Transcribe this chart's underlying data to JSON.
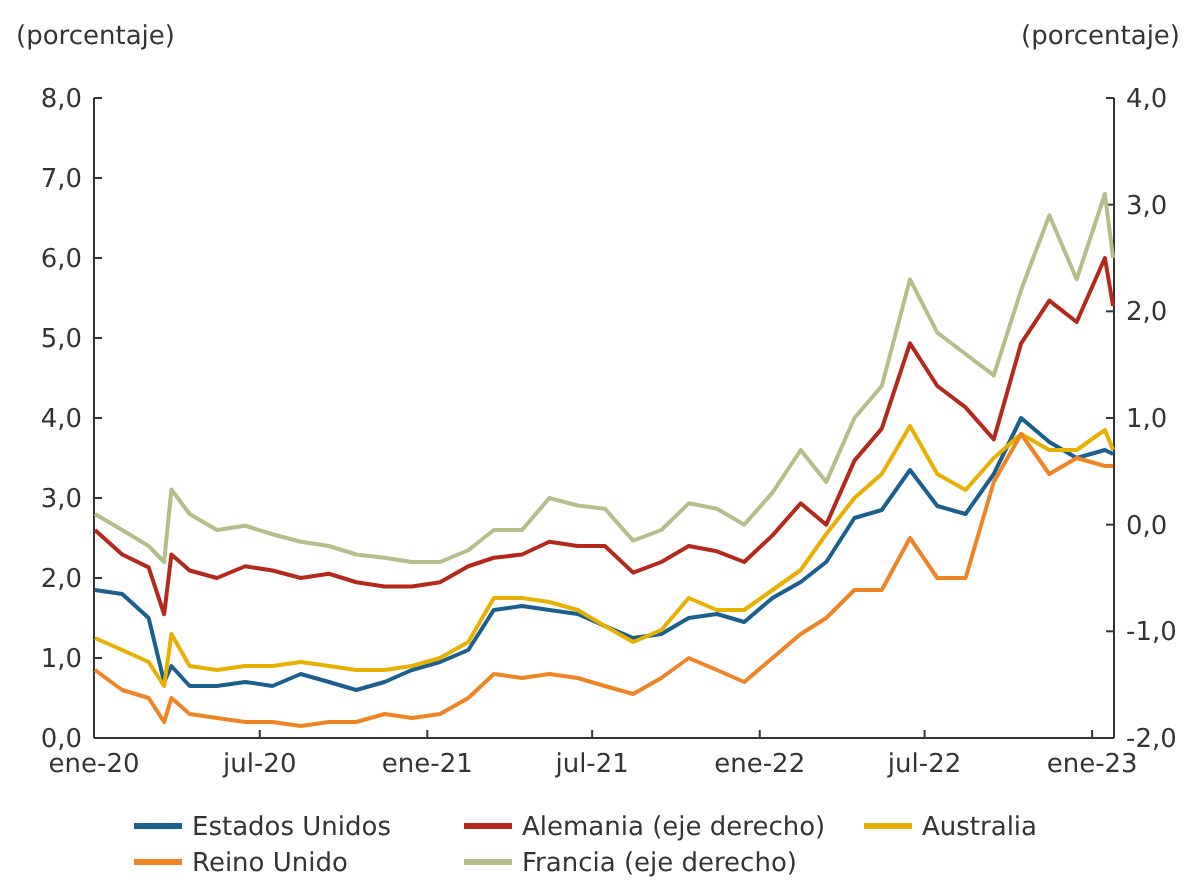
{
  "chart_data": {
    "type": "line",
    "ylabel": "(porcentaje)",
    "y2label": "(porcentaje)",
    "legend": "bottom",
    "x": [
      "2020-01-02",
      "2020-02-01",
      "2020-03-01",
      "2020-03-18",
      "2020-03-26",
      "2020-04-15",
      "2020-05-15",
      "2020-06-15",
      "2020-07-15",
      "2020-08-15",
      "2020-09-15",
      "2020-10-15",
      "2020-11-15",
      "2020-12-15",
      "2021-01-15",
      "2021-02-15",
      "2021-03-15",
      "2021-04-15",
      "2021-05-15",
      "2021-06-15",
      "2021-07-15",
      "2021-08-15",
      "2021-09-15",
      "2021-10-15",
      "2021-11-15",
      "2021-12-15",
      "2022-01-15",
      "2022-02-15",
      "2022-03-15",
      "2022-04-15",
      "2022-05-15",
      "2022-06-15",
      "2022-07-15",
      "2022-08-15",
      "2022-09-15",
      "2022-10-15",
      "2022-11-15",
      "2022-12-15",
      "2023-01-15",
      "2023-01-24"
    ],
    "xlim": [
      "2020-01-01",
      "2023-01-25"
    ],
    "xticks": [
      {
        "value": "2020-01-01",
        "label": "ene-20"
      },
      {
        "value": "2020-07-01",
        "label": "jul-20"
      },
      {
        "value": "2021-01-01",
        "label": "ene-21"
      },
      {
        "value": "2021-07-01",
        "label": "jul-21"
      },
      {
        "value": "2022-01-01",
        "label": "ene-22"
      },
      {
        "value": "2022-07-01",
        "label": "jul-22"
      },
      {
        "value": "2023-01-01",
        "label": "ene-23"
      }
    ],
    "ylim": [
      0,
      8
    ],
    "yticks": [
      {
        "value": 0,
        "label": "0,0"
      },
      {
        "value": 1,
        "label": "1,0"
      },
      {
        "value": 2,
        "label": "2,0"
      },
      {
        "value": 3,
        "label": "3,0"
      },
      {
        "value": 4,
        "label": "4,0"
      },
      {
        "value": 5,
        "label": "5,0"
      },
      {
        "value": 6,
        "label": "6,0"
      },
      {
        "value": 7,
        "label": "7,0"
      },
      {
        "value": 8,
        "label": "8,0"
      }
    ],
    "y2lim": [
      -2,
      4
    ],
    "y2ticks": [
      {
        "value": -2,
        "label": "-2,0"
      },
      {
        "value": -1,
        "label": "-1,0"
      },
      {
        "value": 0,
        "label": "0,0"
      },
      {
        "value": 1,
        "label": "1,0"
      },
      {
        "value": 2,
        "label": "2,0"
      },
      {
        "value": 3,
        "label": "3,0"
      },
      {
        "value": 4,
        "label": "4,0"
      }
    ],
    "series": [
      {
        "name": "Estados Unidos",
        "color": "#1a5f8e",
        "values": [
          1.85,
          1.8,
          1.5,
          0.7,
          0.9,
          0.65,
          0.65,
          0.7,
          0.65,
          0.8,
          0.7,
          0.6,
          0.7,
          0.85,
          0.95,
          1.1,
          1.6,
          1.65,
          1.6,
          1.55,
          1.4,
          1.25,
          1.3,
          1.5,
          1.55,
          1.45,
          1.75,
          1.95,
          2.2,
          2.75,
          2.85,
          3.35,
          2.9,
          2.8,
          3.3,
          4.0,
          3.7,
          3.5,
          3.6,
          3.55
        ]
      },
      {
        "name": "Alemania (eje derecho)",
        "color": "#b5281c",
        "axis": "y2",
        "values": [
          -0.05,
          -0.28,
          -0.4,
          -0.84,
          -0.28,
          -0.43,
          -0.5,
          -0.39,
          -0.43,
          -0.5,
          -0.46,
          -0.54,
          -0.58,
          -0.58,
          -0.54,
          -0.39,
          -0.31,
          -0.28,
          -0.16,
          -0.2,
          -0.2,
          -0.45,
          -0.35,
          -0.2,
          -0.25,
          -0.35,
          -0.1,
          0.2,
          0.0,
          0.6,
          0.9,
          1.7,
          1.3,
          1.1,
          0.8,
          1.7,
          2.1,
          1.9,
          2.5,
          2.05
        ]
      },
      {
        "name": "Australia",
        "color": "#e8b000",
        "values": [
          1.25,
          1.1,
          0.95,
          0.65,
          1.3,
          0.9,
          0.85,
          0.9,
          0.9,
          0.95,
          0.9,
          0.85,
          0.85,
          0.9,
          1.0,
          1.2,
          1.75,
          1.75,
          1.7,
          1.6,
          1.4,
          1.2,
          1.35,
          1.75,
          1.6,
          1.6,
          1.85,
          2.1,
          2.55,
          3.0,
          3.3,
          3.9,
          3.3,
          3.1,
          3.5,
          3.8,
          3.6,
          3.6,
          3.85,
          3.6
        ]
      },
      {
        "name": "Reino Unido",
        "color": "#f08424",
        "values": [
          0.85,
          0.6,
          0.5,
          0.2,
          0.5,
          0.3,
          0.25,
          0.2,
          0.2,
          0.15,
          0.2,
          0.2,
          0.3,
          0.25,
          0.3,
          0.5,
          0.8,
          0.75,
          0.8,
          0.75,
          0.65,
          0.55,
          0.75,
          1.0,
          0.85,
          0.7,
          1.0,
          1.3,
          1.5,
          1.85,
          1.85,
          2.5,
          2.0,
          2.0,
          3.2,
          3.8,
          3.3,
          3.5,
          3.4,
          3.4
        ]
      },
      {
        "name": "Francia (eje derecho)",
        "color": "#b5bd89",
        "axis": "y2",
        "values": [
          0.1,
          -0.05,
          -0.2,
          -0.35,
          0.33,
          0.1,
          -0.05,
          -0.01,
          -0.09,
          -0.16,
          -0.2,
          -0.28,
          -0.31,
          -0.35,
          -0.35,
          -0.24,
          -0.05,
          -0.05,
          0.25,
          0.18,
          0.15,
          -0.15,
          -0.05,
          0.2,
          0.15,
          0.0,
          0.3,
          0.7,
          0.4,
          1.0,
          1.3,
          2.3,
          1.8,
          1.6,
          1.4,
          2.2,
          2.9,
          2.3,
          3.1,
          2.5
        ]
      }
    ]
  }
}
